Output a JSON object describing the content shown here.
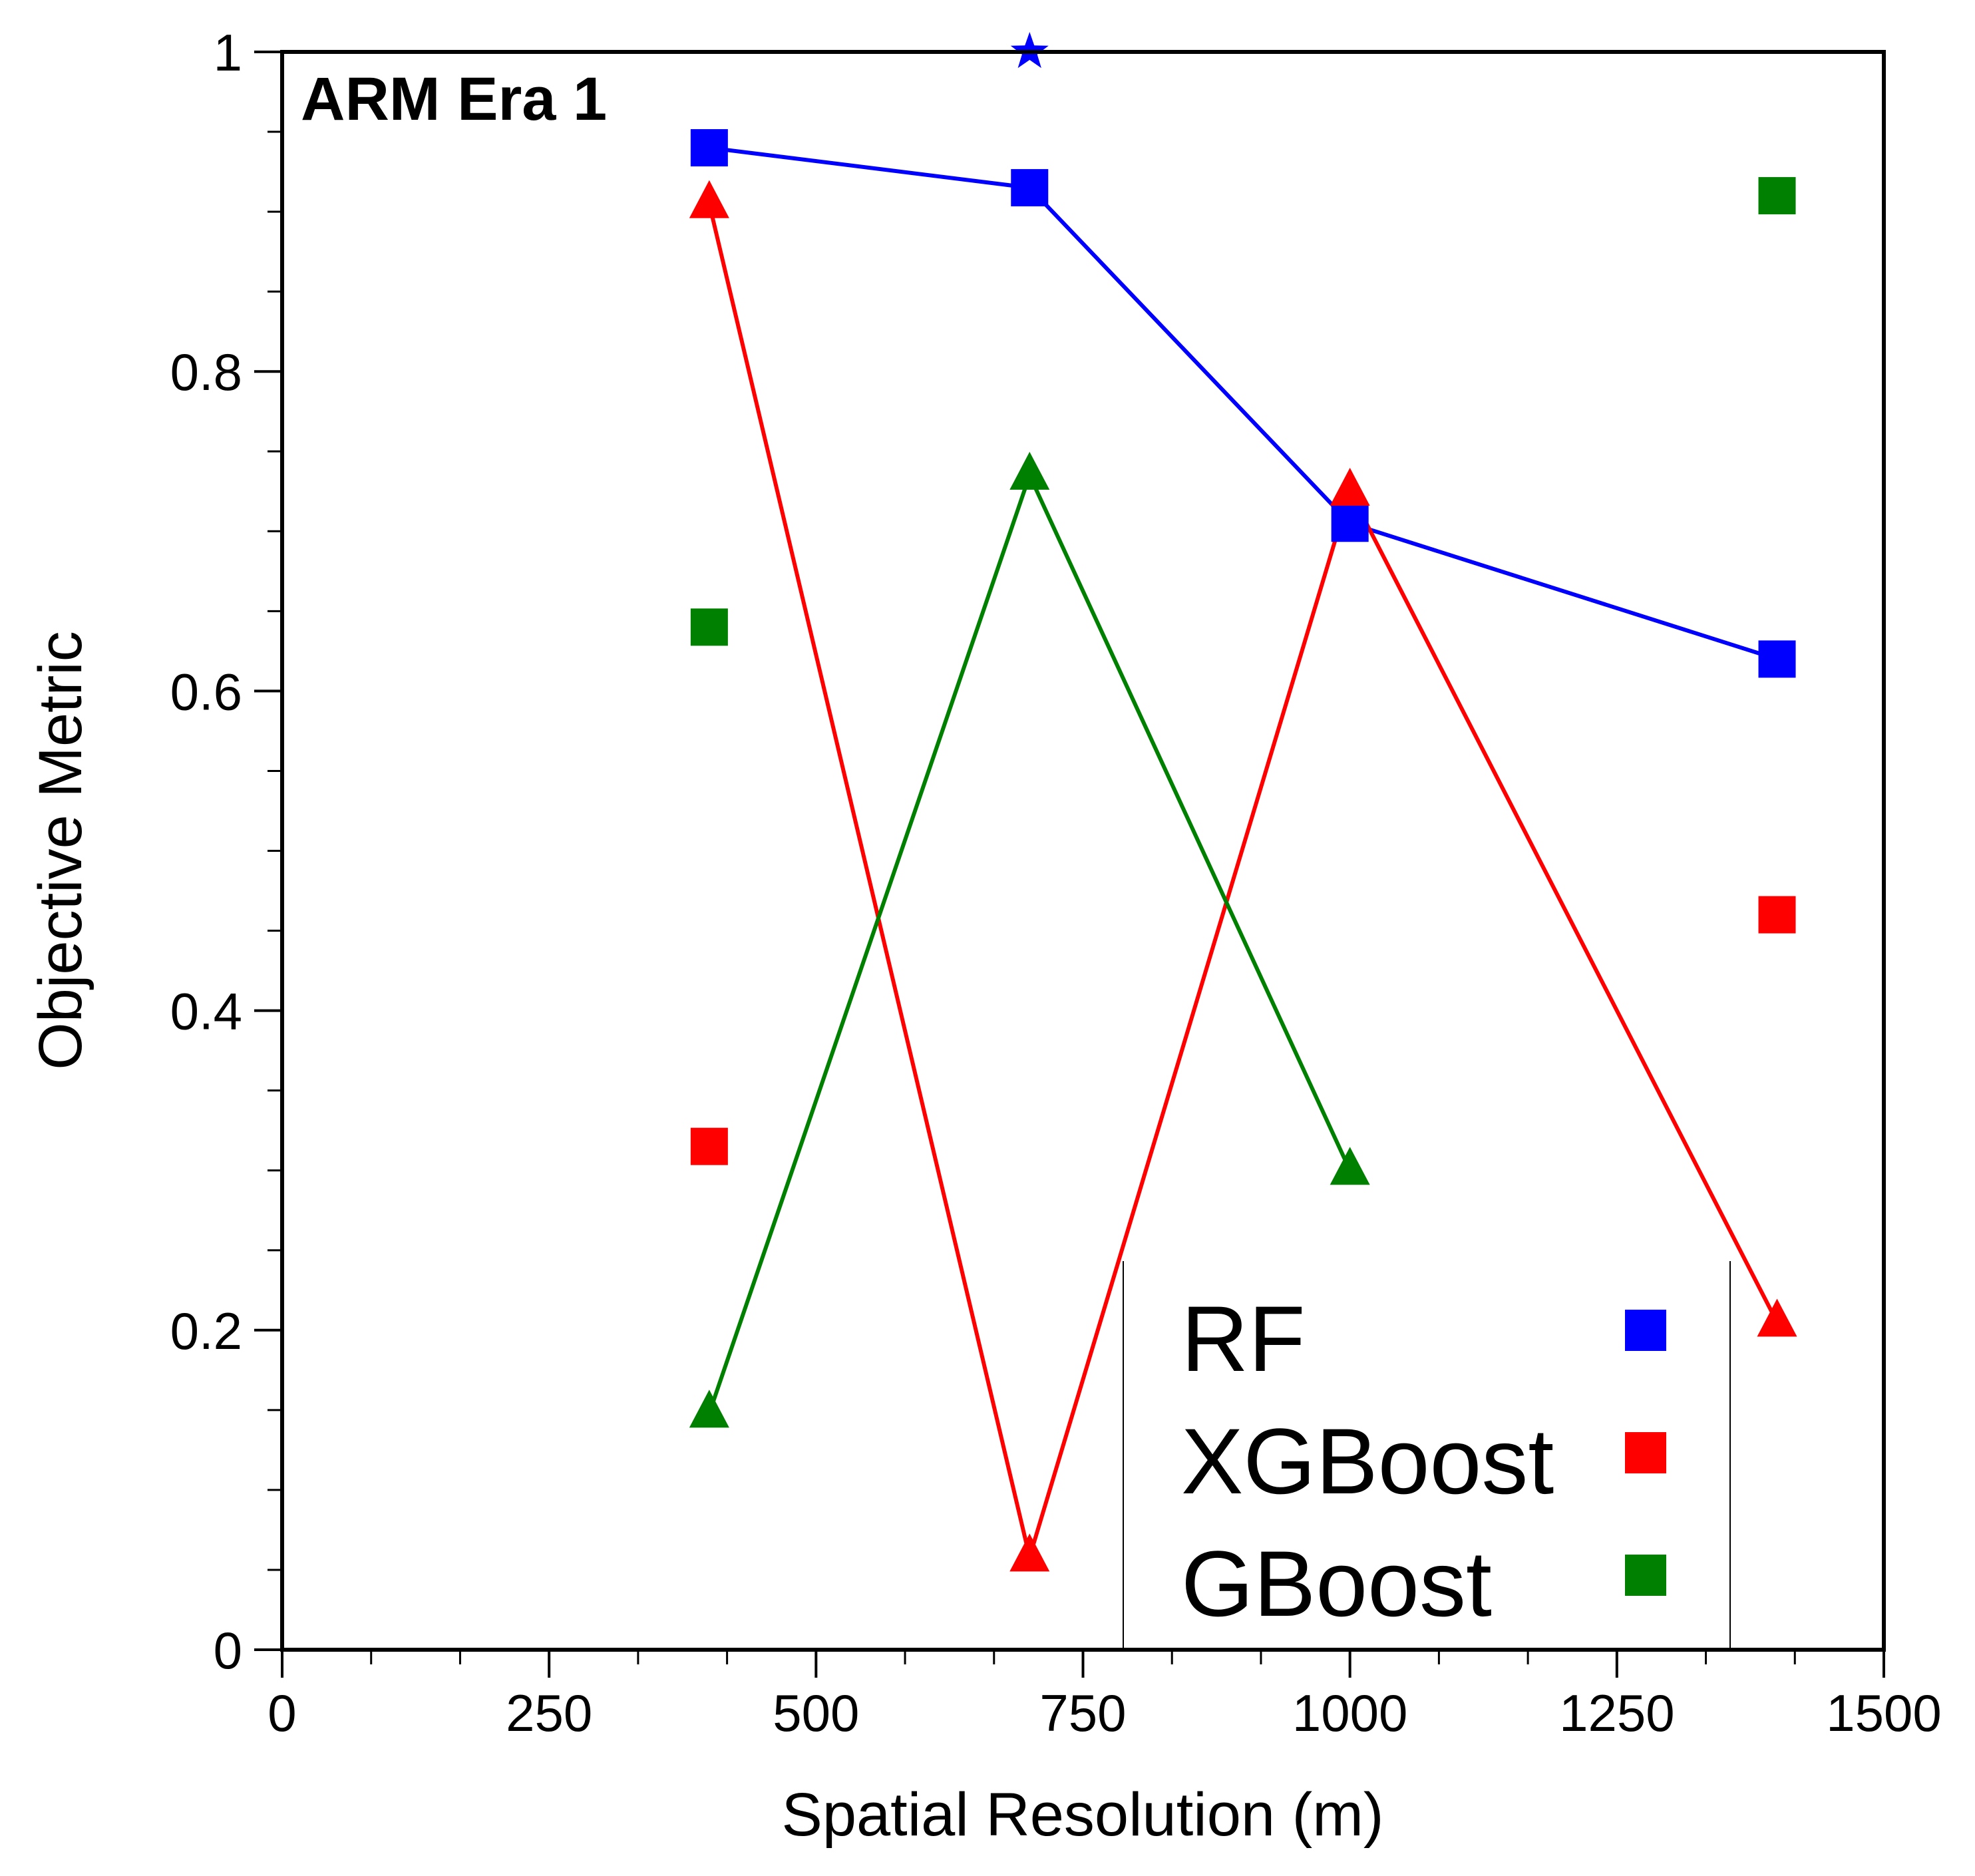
{
  "chart_data": {
    "type": "line",
    "panel_label": "ARM Era 1",
    "xlabel": "Spatial Resolution (m)",
    "ylabel": "Objective Metric",
    "xlim": [
      0,
      1500
    ],
    "ylim": [
      0,
      1
    ],
    "xticks": [
      {
        "value": 0,
        "label": "0"
      },
      {
        "value": 250,
        "label": "250"
      },
      {
        "value": 500,
        "label": "500"
      },
      {
        "value": 750,
        "label": "750"
      },
      {
        "value": 1000,
        "label": "1000"
      },
      {
        "value": 1250,
        "label": "1250"
      },
      {
        "value": 1500,
        "label": "1500"
      }
    ],
    "yticks": [
      {
        "value": 0,
        "label": "0"
      },
      {
        "value": 0.2,
        "label": "0.2"
      },
      {
        "value": 0.4,
        "label": "0.4"
      },
      {
        "value": 0.6,
        "label": "0.6"
      },
      {
        "value": 0.8,
        "label": "0.8"
      },
      {
        "value": 1,
        "label": "1"
      }
    ],
    "series": [
      {
        "name": "RF",
        "color": "#0000ff",
        "squares": [
          {
            "x": 400,
            "y": 0.94
          },
          {
            "x": 700,
            "y": 0.915
          },
          {
            "x": 1000,
            "y": 0.705
          },
          {
            "x": 1400,
            "y": 0.62
          }
        ],
        "line": [
          {
            "x": 400,
            "y": 0.94
          },
          {
            "x": 700,
            "y": 0.915
          },
          {
            "x": 1000,
            "y": 0.705
          },
          {
            "x": 1400,
            "y": 0.62
          }
        ],
        "triangles": [],
        "star": {
          "x": 700,
          "y": 1.0
        }
      },
      {
        "name": "XGBoost",
        "color": "#ff0000",
        "squares": [
          {
            "x": 400,
            "y": 0.315
          },
          {
            "x": 1400,
            "y": 0.46
          }
        ],
        "line": [
          {
            "x": 400,
            "y": 0.905
          },
          {
            "x": 700,
            "y": 0.058
          },
          {
            "x": 1000,
            "y": 0.725
          },
          {
            "x": 1400,
            "y": 0.205
          }
        ],
        "triangles": [
          {
            "x": 400,
            "y": 0.905
          },
          {
            "x": 700,
            "y": 0.058
          },
          {
            "x": 1000,
            "y": 0.725
          },
          {
            "x": 1400,
            "y": 0.205
          }
        ]
      },
      {
        "name": "GBoost",
        "color": "#008000",
        "squares": [
          {
            "x": 400,
            "y": 0.64
          },
          {
            "x": 1400,
            "y": 0.91
          }
        ],
        "line": [
          {
            "x": 400,
            "y": 0.148
          },
          {
            "x": 700,
            "y": 0.735
          },
          {
            "x": 1000,
            "y": 0.3
          }
        ],
        "triangles": [
          {
            "x": 400,
            "y": 0.148
          },
          {
            "x": 700,
            "y": 0.735
          },
          {
            "x": 1000,
            "y": 0.3
          }
        ]
      }
    ],
    "legend": {
      "position": "bottom-right",
      "entries": [
        {
          "label": "RF",
          "color": "#0000ff"
        },
        {
          "label": "XGBoost",
          "color": "#ff0000"
        },
        {
          "label": "GBoost",
          "color": "#008000"
        }
      ]
    }
  }
}
